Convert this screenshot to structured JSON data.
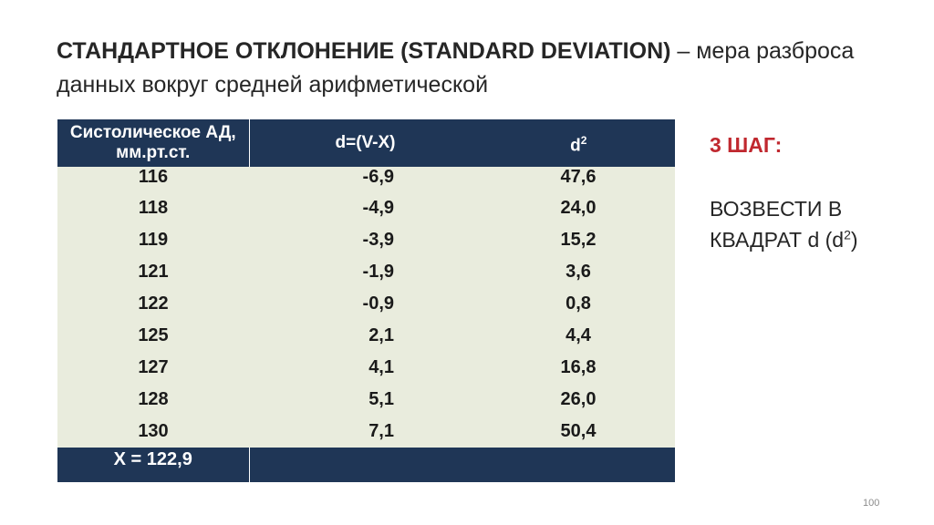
{
  "title": {
    "bold": "СТАНДАРТНОЕ ОТКЛОНЕНИЕ (STANDARD DEVIATION)",
    "rest": " – мера разброса данных вокруг средней арифметической"
  },
  "table": {
    "header": {
      "col1": "Систолическое АД, мм.рт.ст.",
      "col2": "d=(V-X)",
      "col3_base": "d",
      "col3_sup": "2"
    },
    "rows": [
      [
        "116",
        "-6,9",
        "47,6"
      ],
      [
        "118",
        "-4,9",
        "24,0"
      ],
      [
        "119",
        "-3,9",
        "15,2"
      ],
      [
        "121",
        "-1,9",
        "3,6"
      ],
      [
        "122",
        "-0,9",
        "0,8"
      ],
      [
        "125",
        "2,1",
        "4,4"
      ],
      [
        "127",
        "4,1",
        "16,8"
      ],
      [
        "128",
        "5,1",
        "26,0"
      ],
      [
        "130",
        "7,1",
        "50,4"
      ]
    ],
    "footer": "X = 122,9",
    "colors": {
      "header_bg": "#1f3656",
      "body_bg": "#e9ecdd"
    }
  },
  "step": {
    "heading": "3 ШАГ:",
    "text": "ВОЗВЕСТИ В КВАДРАТ d (d",
    "text_sup": "2",
    "text_end": ")",
    "heading_color": "#c0282f"
  },
  "page_number": "100"
}
